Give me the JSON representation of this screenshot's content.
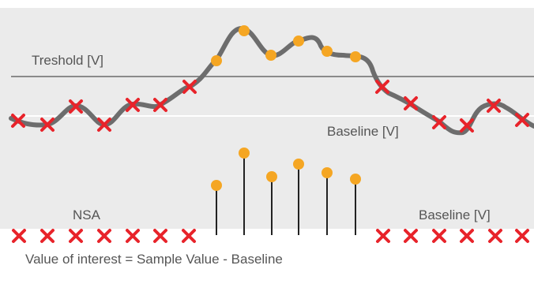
{
  "labels": {
    "threshold": "Treshold [V]",
    "baseline_top": "Baseline [V]",
    "nsa": "NSA",
    "baseline_bottom": "Baseline [V]",
    "formula": "Value of interest = Sample Value - Baseline"
  },
  "colors": {
    "panel_bg": "#ebebeb",
    "signal": "#6d6d6d",
    "threshold_line": "#8a8a8a",
    "baseline_line": "#ffffff",
    "sample_below": "#e8232a",
    "sample_above": "#f5a623",
    "stem": "#222222",
    "text": "#555555"
  },
  "legend": [
    {
      "icon": "red-x-marker",
      "meaning": "sample below threshold"
    },
    {
      "icon": "orange-dot-marker",
      "meaning": "sample above threshold"
    }
  ]
}
